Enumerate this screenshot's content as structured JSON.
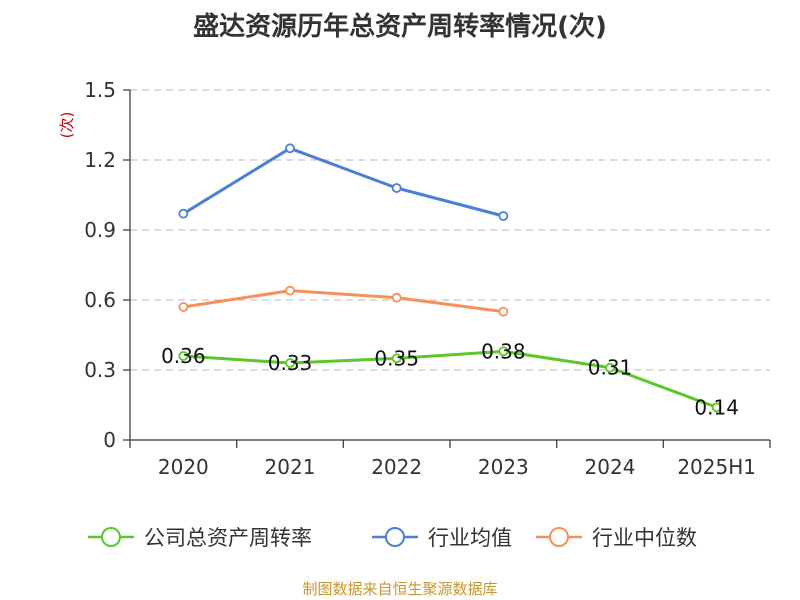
{
  "chart_data": {
    "type": "line",
    "title": "盛达资源历年总资产周转率情况(次)",
    "ylabel": "(次)",
    "xlabel": "",
    "categories": [
      "2020",
      "2021",
      "2022",
      "2023",
      "2024",
      "2025H1"
    ],
    "ylim": [
      0,
      1.5
    ],
    "yticks": [
      "0",
      "0.3",
      "0.6",
      "0.9",
      "1.2",
      "1.5"
    ],
    "grid": true,
    "legend_position": "bottom",
    "series": [
      {
        "name": "公司总资产周转率",
        "color": "#5cc72a",
        "values": [
          0.36,
          0.33,
          0.35,
          0.38,
          0.31,
          0.14
        ],
        "labels": [
          "0.36",
          "0.33",
          "0.35",
          "0.38",
          "0.31",
          "0.14"
        ]
      },
      {
        "name": "行业均值",
        "color": "#4b7fd6",
        "values": [
          0.97,
          1.25,
          1.08,
          0.96,
          null,
          null
        ]
      },
      {
        "name": "行业中位数",
        "color": "#f5905b",
        "values": [
          0.57,
          0.64,
          0.61,
          0.55,
          null,
          null
        ]
      }
    ],
    "ylabel_color": "#cc0000"
  },
  "footer": {
    "source": "制图数据来自恒生聚源数据库",
    "source_color": "#c8962e"
  }
}
